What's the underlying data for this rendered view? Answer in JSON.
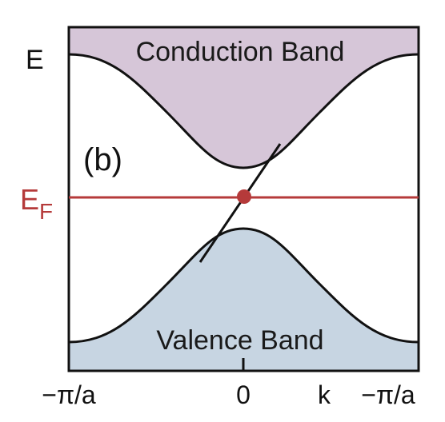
{
  "figure": {
    "panel_label": "(b)",
    "energy_axis_label": "E",
    "fermi_label_main": "E",
    "fermi_label_sub": "F",
    "conduction_band_label": "Conduction Band",
    "valence_band_label": "Valence Band",
    "tick_labels": {
      "left": "−π/a",
      "center": "0",
      "k": "k",
      "right": "−π/a"
    }
  },
  "colors": {
    "conduction_band_fill": "#d6c6d8",
    "valence_band_fill": "#c7d5e2",
    "fermi_level": "#b53a3a",
    "curve": "#111111",
    "frame": "#111111"
  }
}
